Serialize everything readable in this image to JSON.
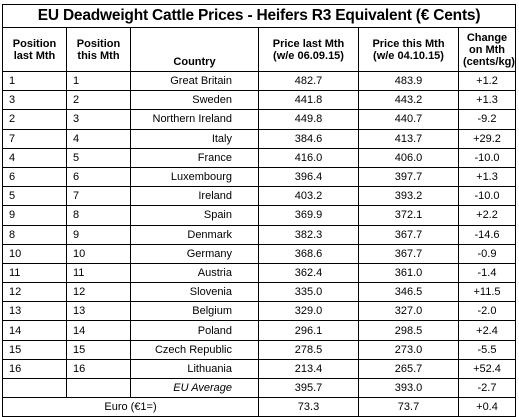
{
  "title": "EU Deadweight Cattle Prices - Heifers R3 Equivalent (€ Cents)",
  "headers": {
    "pos_last": "Position last Mth",
    "pos_this": "Position this Mth",
    "country": "Country",
    "price_last": "Price last Mth (w/e 06.09.15)",
    "price_this": "Price this Mth (w/e 04.10.15)",
    "change": "Change on Mth (cents/kg)"
  },
  "rows": [
    {
      "pos_last": "1",
      "pos_this": "1",
      "country": "Great Britain",
      "price_last": "482.7",
      "price_this": "483.9",
      "change": "+1.2"
    },
    {
      "pos_last": "3",
      "pos_this": "2",
      "country": "Sweden",
      "price_last": "441.8",
      "price_this": "443.2",
      "change": "+1.3"
    },
    {
      "pos_last": "2",
      "pos_this": "3",
      "country": "Northern Ireland",
      "price_last": "449.8",
      "price_this": "440.7",
      "change": "-9.2"
    },
    {
      "pos_last": "7",
      "pos_this": "4",
      "country": "Italy",
      "price_last": "384.6",
      "price_this": "413.7",
      "change": "+29.2"
    },
    {
      "pos_last": "4",
      "pos_this": "5",
      "country": "France",
      "price_last": "416.0",
      "price_this": "406.0",
      "change": "-10.0"
    },
    {
      "pos_last": "6",
      "pos_this": "6",
      "country": "Luxembourg",
      "price_last": "396.4",
      "price_this": "397.7",
      "change": "+1.3"
    },
    {
      "pos_last": "5",
      "pos_this": "7",
      "country": "Ireland",
      "price_last": "403.2",
      "price_this": "393.2",
      "change": "-10.0"
    },
    {
      "pos_last": "9",
      "pos_this": "8",
      "country": "Spain",
      "price_last": "369.9",
      "price_this": "372.1",
      "change": "+2.2"
    },
    {
      "pos_last": "8",
      "pos_this": "9",
      "country": "Denmark",
      "price_last": "382.3",
      "price_this": "367.7",
      "change": "-14.6"
    },
    {
      "pos_last": "10",
      "pos_this": "10",
      "country": "Germany",
      "price_last": "368.6",
      "price_this": "367.7",
      "change": "-0.9"
    },
    {
      "pos_last": "11",
      "pos_this": "11",
      "country": "Austria",
      "price_last": "362.4",
      "price_this": "361.0",
      "change": "-1.4"
    },
    {
      "pos_last": "12",
      "pos_this": "12",
      "country": "Slovenia",
      "price_last": "335.0",
      "price_this": "346.5",
      "change": "+11.5"
    },
    {
      "pos_last": "13",
      "pos_this": "13",
      "country": "Belgium",
      "price_last": "329.0",
      "price_this": "327.0",
      "change": "-2.0"
    },
    {
      "pos_last": "14",
      "pos_this": "14",
      "country": "Poland",
      "price_last": "296.1",
      "price_this": "298.5",
      "change": "+2.4"
    },
    {
      "pos_last": "15",
      "pos_this": "15",
      "country": "Czech Republic",
      "price_last": "278.5",
      "price_this": "273.0",
      "change": "-5.5"
    },
    {
      "pos_last": "16",
      "pos_this": "16",
      "country": "Lithuania",
      "price_last": "213.4",
      "price_this": "265.7",
      "change": "+52.4"
    }
  ],
  "eu_average": {
    "label": "EU Average",
    "price_last": "395.7",
    "price_this": "393.0",
    "change": "-2.7"
  },
  "euro_rate": {
    "label": "Euro (€1=)",
    "price_last": "73.3",
    "price_this": "73.7",
    "change": "+0.4"
  }
}
